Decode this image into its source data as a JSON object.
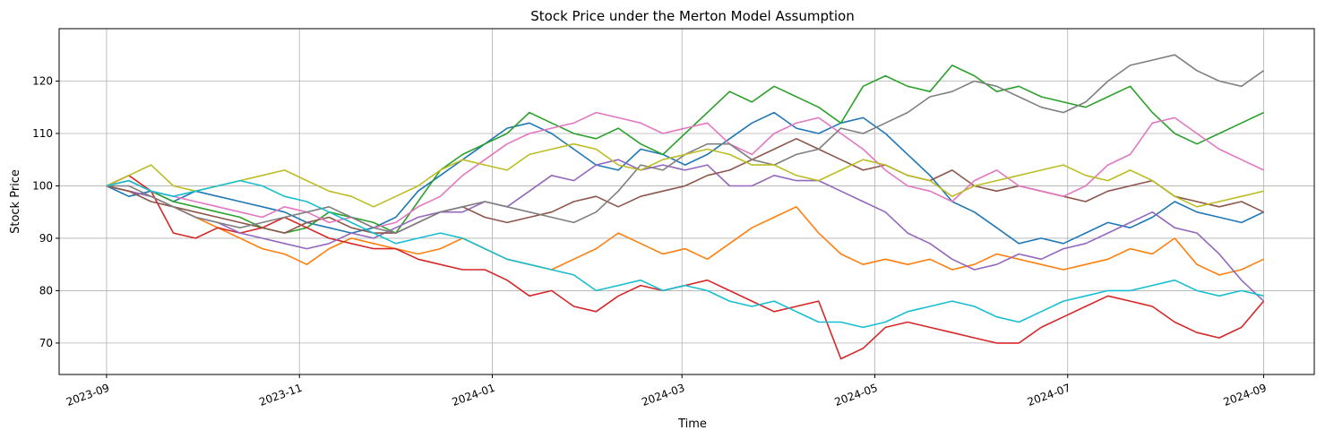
{
  "chart_data": {
    "type": "line",
    "title": "Stock Price under the Merton Model Assumption",
    "xlabel": "Time",
    "ylabel": "Stock Price",
    "x_range": [
      "2023-09-01",
      "2024-09-01"
    ],
    "xlim": [
      "2023-08-17",
      "2024-09-17"
    ],
    "ylim": [
      64,
      130
    ],
    "grid": true,
    "x_ticks": [
      "2023-09",
      "2023-11",
      "2024-01",
      "2024-03",
      "2024-05",
      "2024-07",
      "2024-09"
    ],
    "y_ticks": [
      70,
      80,
      90,
      100,
      110,
      120
    ],
    "series": [
      {
        "color": "#1f77b4",
        "values": [
          100,
          98,
          99,
          97,
          99,
          98,
          97,
          96,
          95,
          93,
          92,
          91,
          92,
          94,
          99,
          102,
          105,
          108,
          111,
          112,
          110,
          107,
          104,
          103,
          107,
          106,
          104,
          106,
          109,
          112,
          114,
          111,
          110,
          112,
          113,
          110,
          106,
          102,
          97,
          95,
          92,
          89,
          90,
          89,
          91,
          93,
          92,
          94,
          97,
          95,
          94,
          93,
          95
        ]
      },
      {
        "color": "#ff7f0e",
        "values": [
          100,
          99,
          98,
          96,
          94,
          92,
          90,
          88,
          87,
          85,
          88,
          90,
          89,
          88,
          87,
          88,
          90,
          88,
          86,
          85,
          84,
          86,
          88,
          91,
          89,
          87,
          88,
          86,
          89,
          92,
          94,
          96,
          91,
          87,
          85,
          86,
          85,
          86,
          84,
          85,
          87,
          86,
          85,
          84,
          85,
          86,
          88,
          87,
          90,
          85,
          83,
          84,
          86
        ]
      },
      {
        "color": "#2ca02c",
        "values": [
          100,
          101,
          99,
          97,
          96,
          95,
          94,
          92,
          91,
          92,
          95,
          94,
          93,
          91,
          97,
          103,
          106,
          108,
          110,
          114,
          112,
          110,
          109,
          111,
          108,
          106,
          110,
          114,
          118,
          116,
          119,
          117,
          115,
          112,
          119,
          121,
          119,
          118,
          123,
          121,
          118,
          119,
          117,
          116,
          115,
          117,
          119,
          114,
          110,
          108,
          110,
          112,
          114
        ]
      },
      {
        "color": "#d62728",
        "values": [
          100,
          102,
          99,
          91,
          90,
          92,
          91,
          92,
          94,
          92,
          90,
          89,
          88,
          88,
          86,
          85,
          84,
          84,
          82,
          79,
          80,
          77,
          76,
          79,
          81,
          80,
          81,
          82,
          80,
          78,
          76,
          77,
          78,
          67,
          69,
          73,
          74,
          73,
          72,
          71,
          70,
          70,
          73,
          75,
          77,
          79,
          78,
          77,
          74,
          72,
          71,
          73,
          78
        ]
      },
      {
        "color": "#9467bd",
        "values": [
          100,
          99,
          98,
          96,
          94,
          93,
          91,
          90,
          89,
          88,
          89,
          91,
          90,
          92,
          94,
          95,
          95,
          97,
          96,
          99,
          102,
          101,
          104,
          105,
          103,
          104,
          103,
          104,
          100,
          100,
          102,
          101,
          101,
          99,
          97,
          95,
          91,
          89,
          86,
          84,
          85,
          87,
          86,
          88,
          89,
          91,
          93,
          95,
          92,
          91,
          87,
          82,
          78
        ]
      },
      {
        "color": "#8c564b",
        "values": [
          100,
          99,
          97,
          96,
          95,
          94,
          93,
          92,
          91,
          93,
          94,
          92,
          91,
          91,
          93,
          95,
          96,
          94,
          93,
          94,
          95,
          97,
          98,
          96,
          98,
          99,
          100,
          102,
          103,
          105,
          107,
          109,
          107,
          105,
          103,
          104,
          102,
          101,
          103,
          100,
          99,
          100,
          99,
          98,
          97,
          99,
          100,
          101,
          98,
          97,
          96,
          97,
          95
        ]
      },
      {
        "color": "#e377c2",
        "values": [
          100,
          101,
          99,
          98,
          97,
          96,
          95,
          94,
          96,
          95,
          93,
          94,
          92,
          93,
          96,
          98,
          102,
          105,
          108,
          110,
          111,
          112,
          114,
          113,
          112,
          110,
          111,
          112,
          108,
          106,
          110,
          112,
          113,
          110,
          107,
          103,
          100,
          99,
          97,
          101,
          103,
          100,
          99,
          98,
          100,
          104,
          106,
          112,
          113,
          110,
          107,
          105,
          103
        ]
      },
      {
        "color": "#7f7f7f",
        "values": [
          100,
          100,
          98,
          96,
          94,
          93,
          92,
          93,
          94,
          95,
          96,
          94,
          92,
          91,
          93,
          95,
          96,
          97,
          96,
          95,
          94,
          93,
          95,
          99,
          104,
          103,
          106,
          108,
          108,
          105,
          104,
          106,
          107,
          111,
          110,
          112,
          114,
          117,
          118,
          120,
          119,
          117,
          115,
          114,
          116,
          120,
          123,
          124,
          125,
          122,
          120,
          119,
          122
        ]
      },
      {
        "color": "#bcbd22",
        "values": [
          100,
          102,
          104,
          100,
          99,
          100,
          101,
          102,
          103,
          101,
          99,
          98,
          96,
          98,
          100,
          103,
          105,
          104,
          103,
          106,
          107,
          108,
          107,
          104,
          103,
          105,
          106,
          107,
          106,
          104,
          104,
          102,
          101,
          103,
          105,
          104,
          102,
          101,
          98,
          100,
          101,
          102,
          103,
          104,
          102,
          101,
          103,
          101,
          98,
          96,
          97,
          98,
          99
        ]
      },
      {
        "color": "#17becf",
        "values": [
          100,
          101,
          99,
          98,
          99,
          100,
          101,
          100,
          98,
          97,
          95,
          93,
          91,
          89,
          90,
          91,
          90,
          88,
          86,
          85,
          84,
          83,
          80,
          81,
          82,
          80,
          81,
          80,
          78,
          77,
          78,
          76,
          74,
          74,
          73,
          74,
          76,
          77,
          78,
          77,
          75,
          74,
          76,
          78,
          79,
          80,
          80,
          81,
          82,
          80,
          79,
          80,
          79
        ]
      }
    ]
  }
}
